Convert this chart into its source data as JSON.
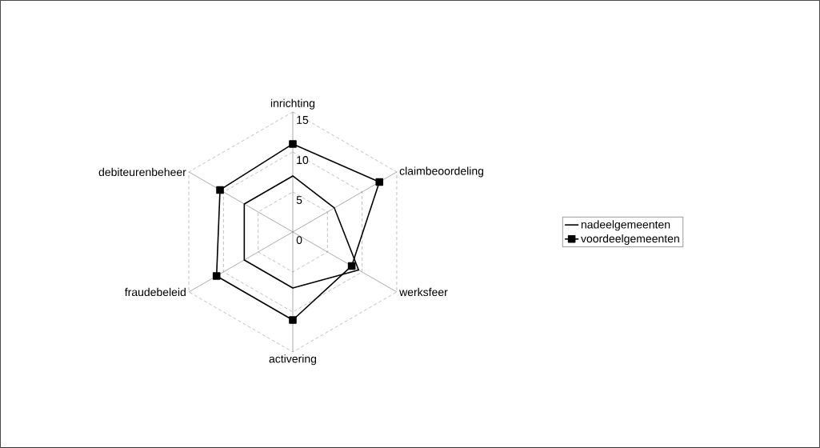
{
  "chart_data": {
    "type": "radar",
    "categories": [
      "inrichting",
      "claimbeoordeling",
      "werksfeer",
      "activering",
      "fraudebeleid",
      "debiteurenbeheer"
    ],
    "series": [
      {
        "name": "nadeelgemeenten",
        "color": "#000000",
        "marker": "none",
        "values": [
          7,
          6,
          9.5,
          7,
          7,
          7
        ]
      },
      {
        "name": "voordeelgemeenten",
        "color": "#000000",
        "marker": "square",
        "values": [
          11,
          12.5,
          8.5,
          11,
          11,
          10.5
        ]
      }
    ],
    "ylim": [
      0,
      15
    ],
    "yticks": [
      0,
      5,
      10,
      15
    ],
    "grid": true,
    "legend": "right"
  }
}
